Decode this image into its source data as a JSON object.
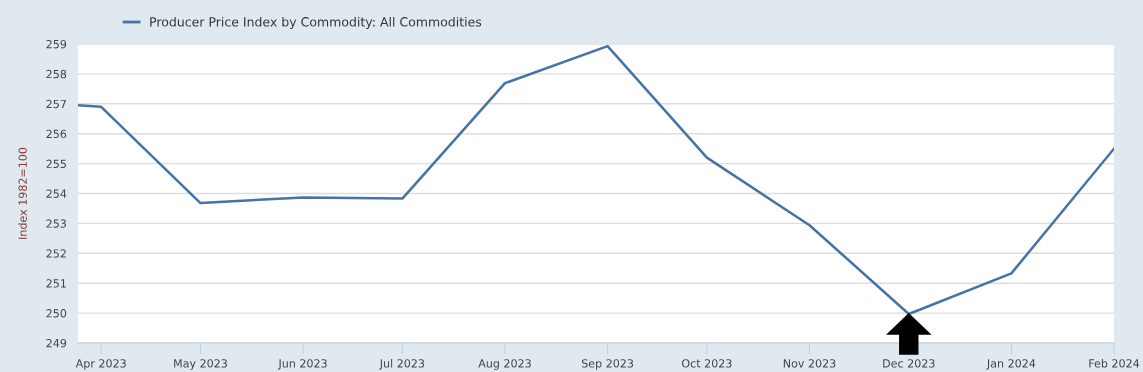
{
  "chart_data": {
    "type": "line",
    "ylabel": "Index 1982=100",
    "x": [
      "2023-03-25",
      "2023-04",
      "2023-05",
      "2023-06",
      "2023-07",
      "2023-08",
      "2023-09",
      "2023-10",
      "2023-11",
      "2023-12",
      "2024-01",
      "2024-02"
    ],
    "series": [
      {
        "name": "Producer Price Index by Commodity: All Commodities",
        "color": "#4572a7",
        "values": [
          256.95,
          256.9,
          253.68,
          253.87,
          253.83,
          257.69,
          258.93,
          255.2,
          252.94,
          249.97,
          251.33,
          255.5
        ]
      }
    ],
    "xlim": [
      "2023-03-25",
      "2024-02-01"
    ],
    "xticks": [
      {
        "value": "2023-04",
        "label": "Apr 2023"
      },
      {
        "value": "2023-05",
        "label": "May 2023"
      },
      {
        "value": "2023-06",
        "label": "Jun 2023"
      },
      {
        "value": "2023-07",
        "label": "Jul 2023"
      },
      {
        "value": "2023-08",
        "label": "Aug 2023"
      },
      {
        "value": "2023-09",
        "label": "Sep 2023"
      },
      {
        "value": "2023-10",
        "label": "Oct 2023"
      },
      {
        "value": "2023-11",
        "label": "Nov 2023"
      },
      {
        "value": "2023-12",
        "label": "Dec 2023"
      },
      {
        "value": "2024-01",
        "label": "Jan 2024"
      },
      {
        "value": "2024-02",
        "label": "Feb 2024"
      }
    ],
    "ylim": [
      249,
      259
    ],
    "yticks": [
      249,
      250,
      251,
      252,
      253,
      254,
      255,
      256,
      257,
      258,
      259
    ],
    "grid": "y",
    "legend": "top left",
    "marker": "none",
    "line_style": "solid"
  }
}
